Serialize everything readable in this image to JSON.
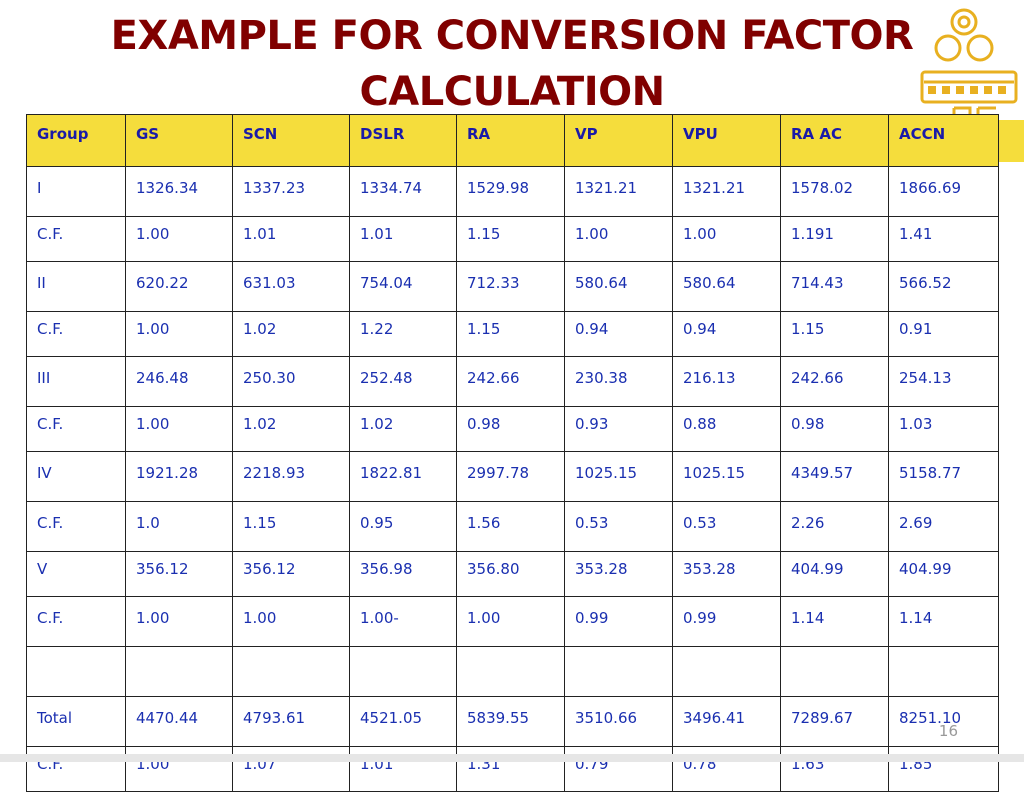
{
  "slide": {
    "title_line1": "EXAMPLE FOR CONVERSION FACTOR",
    "title_line2": "CALCULATION",
    "page_number": "16",
    "colors": {
      "title": "#800000",
      "header_bg": "#f5dd3c",
      "cell_text": "#1a2fb0"
    }
  },
  "table": {
    "headers": [
      "Group",
      "GS",
      "SCN",
      "DSLR",
      "RA",
      "VP",
      "VPU",
      "RA AC",
      "ACCN"
    ],
    "rows": [
      [
        "I",
        "1326.34",
        "1337.23",
        "1334.74",
        "1529.98",
        "1321.21",
        "1321.21",
        "1578.02",
        "1866.69"
      ],
      [
        "C.F.",
        "1.00",
        "1.01",
        "1.01",
        "1.15",
        "1.00",
        "1.00",
        "1.191",
        "1.41"
      ],
      [
        "II",
        "620.22",
        "631.03",
        "754.04",
        "712.33",
        "580.64",
        "580.64",
        "714.43",
        "566.52"
      ],
      [
        "C.F.",
        "1.00",
        "1.02",
        "1.22",
        "1.15",
        "0.94",
        "0.94",
        "1.15",
        "0.91"
      ],
      [
        "III",
        "246.48",
        "250.30",
        "252.48",
        "242.66",
        "230.38",
        "216.13",
        "242.66",
        "254.13"
      ],
      [
        "C.F.",
        "1.00",
        "1.02",
        "1.02",
        "0.98",
        "0.93",
        "0.88",
        "0.98",
        "1.03"
      ],
      [
        "IV",
        "1921.28",
        "2218.93",
        "1822.81",
        "2997.78",
        "1025.15",
        "1025.15",
        "4349.57",
        "5158.77"
      ],
      [
        "C.F.",
        "1.0",
        "1.15",
        "0.95",
        "1.56",
        "0.53",
        "0.53",
        "2.26",
        "2.69"
      ],
      [
        "V",
        "356.12",
        "356.12",
        "356.98",
        "356.80",
        "353.28",
        "353.28",
        "404.99",
        "404.99"
      ],
      [
        "C.F.",
        "1.00",
        "1.00",
        "1.00-",
        "1.00",
        "0.99",
        "0.99",
        "1.14",
        "1.14"
      ],
      [
        "",
        "",
        "",
        "",
        "",
        "",
        "",
        "",
        ""
      ],
      [
        "Total",
        "4470.44",
        "4793.61",
        "4521.05",
        "5839.55",
        "3510.66",
        "3496.41",
        "7289.67",
        "8251.10"
      ],
      [
        "C.F.",
        "1.00",
        "1.07",
        "1.01",
        "1.31",
        "0.79",
        "0.78",
        "1.63",
        "1.85"
      ]
    ]
  }
}
